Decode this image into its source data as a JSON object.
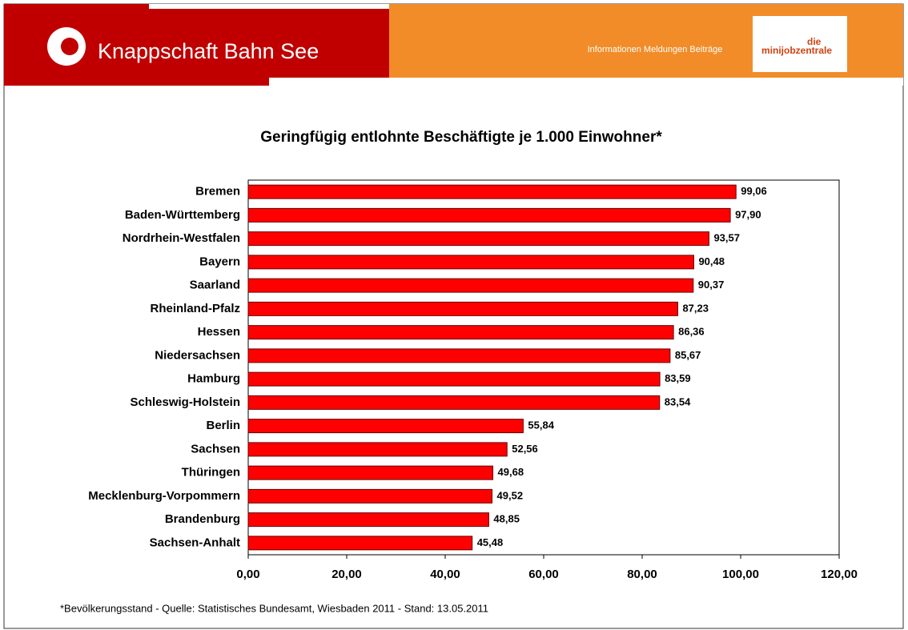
{
  "header": {
    "brand": "Knappschaft Bahn See",
    "nav": "Informationen Meldungen Beiträge",
    "logo_top": "die",
    "logo_bottom": "minijobzentrale"
  },
  "chart_data": {
    "type": "barh",
    "title": "Geringfügig entlohnte Beschäftigte je 1.000 Einwohner*",
    "categories": [
      "Bremen",
      "Baden-Württemberg",
      "Nordrhein-Westfalen",
      "Bayern",
      "Saarland",
      "Rheinland-Pfalz",
      "Hessen",
      "Niedersachsen",
      "Hamburg",
      "Schleswig-Holstein",
      "Berlin",
      "Sachsen",
      "Thüringen",
      "Mecklenburg-Vorpommern",
      "Brandenburg",
      "Sachsen-Anhalt"
    ],
    "values": [
      99.06,
      97.9,
      93.57,
      90.48,
      90.37,
      87.23,
      86.36,
      85.67,
      83.59,
      83.54,
      55.84,
      52.56,
      49.68,
      49.52,
      48.85,
      45.48
    ],
    "value_labels": [
      "99,06",
      "97,90",
      "93,57",
      "90,48",
      "90,37",
      "87,23",
      "86,36",
      "85,67",
      "83,59",
      "83,54",
      "55,84",
      "52,56",
      "49,68",
      "49,52",
      "48,85",
      "45,48"
    ],
    "color": "#ff0000",
    "xlim": [
      0,
      120
    ],
    "xticks": [
      {
        "value": 0,
        "label": "0,00"
      },
      {
        "value": 20,
        "label": "20,00"
      },
      {
        "value": 40,
        "label": "40,00"
      },
      {
        "value": 60,
        "label": "60,00"
      },
      {
        "value": 80,
        "label": "80,00"
      },
      {
        "value": 100,
        "label": "100,00"
      },
      {
        "value": 120,
        "label": "120,00"
      }
    ],
    "footnote": "*Bevölkerungsstand - Quelle: Statistisches Bundesamt, Wiesbaden 2011 - Stand: 13.05.2011"
  }
}
